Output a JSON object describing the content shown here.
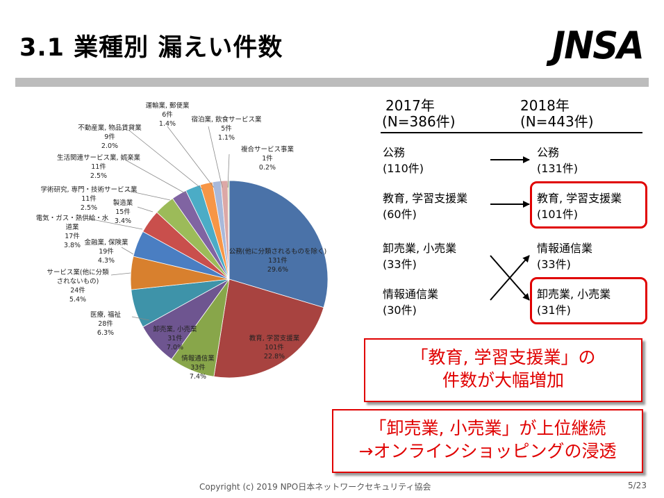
{
  "slide": {
    "title": "3.1 業種別 漏えい件数",
    "logo_text": "JNSA",
    "footer_copyright": "Copyright (c) 2019   NPO日本ネットワークセキュリティ協会",
    "page_number": "5/23"
  },
  "chart_data": {
    "type": "pie",
    "slices": [
      {
        "name": "公務(他に分類されるものを除く)",
        "count": "131件",
        "pct": "29.6%",
        "value": 131,
        "color": "#4a72a8"
      },
      {
        "name": "教育, 学習支援業",
        "count": "101件",
        "pct": "22.8%",
        "value": 101,
        "color": "#a84340"
      },
      {
        "name": "情報通信業",
        "count": "33件",
        "pct": "7.4%",
        "value": 33,
        "color": "#88a64a"
      },
      {
        "name": "卸売業, 小売業",
        "count": "31件",
        "pct": "7.0%",
        "value": 31,
        "color": "#6e5590"
      },
      {
        "name": "医療, 福祉",
        "count": "28件",
        "pct": "6.3%",
        "value": 28,
        "color": "#3e93a9"
      },
      {
        "name": "サービス業(他に分類されないもの)",
        "count": "24件",
        "pct": "5.4%",
        "value": 24,
        "color": "#d8802e"
      },
      {
        "name": "金融業, 保険業",
        "count": "19件",
        "pct": "4.3%",
        "value": 19,
        "color": "#4a7ec2"
      },
      {
        "name": "電気・ガス・熱供給・水道業",
        "count": "17件",
        "pct": "3.8%",
        "value": 17,
        "color": "#c94f4c"
      },
      {
        "name": "製造業",
        "count": "15件",
        "pct": "3.4%",
        "value": 15,
        "color": "#9cbb59"
      },
      {
        "name": "学術研究, 専門・技術サービス業",
        "count": "11件",
        "pct": "2.5%",
        "value": 11,
        "color": "#8064a2"
      },
      {
        "name": "生活関連サービス業, 娯楽業",
        "count": "11件",
        "pct": "2.5%",
        "value": 11,
        "color": "#4bacc6"
      },
      {
        "name": "不動産業, 物品賃貸業",
        "count": "9件",
        "pct": "2.0%",
        "value": 9,
        "color": "#f79646"
      },
      {
        "name": "運輸業, 郵便業",
        "count": "6件",
        "pct": "1.4%",
        "value": 6,
        "color": "#a9b9da"
      },
      {
        "name": "宿泊業, 飲食サービス業",
        "count": "5件",
        "pct": "1.1%",
        "value": 5,
        "color": "#dca8a6"
      },
      {
        "name": "複合サービス事業",
        "count": "1件",
        "pct": "0.2%",
        "value": 1,
        "color": "#c9d9a8"
      }
    ]
  },
  "comparison": {
    "header_2017_year": "2017年",
    "header_2017_n": "(N=386件)",
    "header_2018_year": "2018年",
    "header_2018_n": "(N=443件)",
    "left": [
      {
        "name": "公務",
        "count": "(110件)"
      },
      {
        "name": "教育, 学習支援業",
        "count": "(60件)"
      },
      {
        "name": "卸売業, 小売業",
        "count": "(33件)"
      },
      {
        "name": "情報通信業",
        "count": "(30件)"
      }
    ],
    "right": [
      {
        "name": "公務",
        "count": "(131件)"
      },
      {
        "name": "教育, 学習支援業",
        "count": "(101件)"
      },
      {
        "name": "情報通信業",
        "count": "(33件)"
      },
      {
        "name": "卸売業, 小売業",
        "count": "(31件)"
      }
    ]
  },
  "callouts": {
    "one_line1": "「教育, 学習支援業」の",
    "one_line2": "件数が大幅増加",
    "two_line1": "「卸売業, 小売業」が上位継続",
    "two_line2": "→オンラインショッピングの浸透"
  },
  "colors": {
    "accent_red": "#e00000",
    "title_bar": "#bcbcbc"
  }
}
